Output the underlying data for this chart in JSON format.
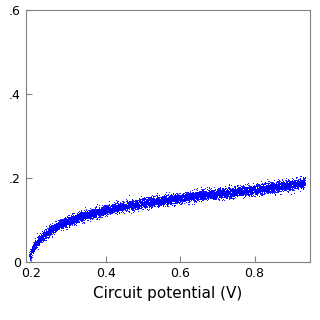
{
  "xlabel": "Circuit potential (V)",
  "xlim": [
    0.185,
    0.95
  ],
  "ylim": [
    0,
    0.6
  ],
  "xticks": [
    0.2,
    0.4,
    0.6,
    0.8
  ],
  "yticks": [
    0,
    0.2,
    0.4,
    0.6
  ],
  "ytick_labels": [
    "0",
    ".2",
    ".4",
    ".6"
  ],
  "xtick_labels": [
    "0.2",
    "0.4",
    "0.6",
    "0.8"
  ],
  "line_color": "#0000ff",
  "background_color": "#ffffff",
  "noise_amplitude": 0.006,
  "n_points": 8000,
  "xlabel_fontsize": 11,
  "tick_labelsize": 9
}
